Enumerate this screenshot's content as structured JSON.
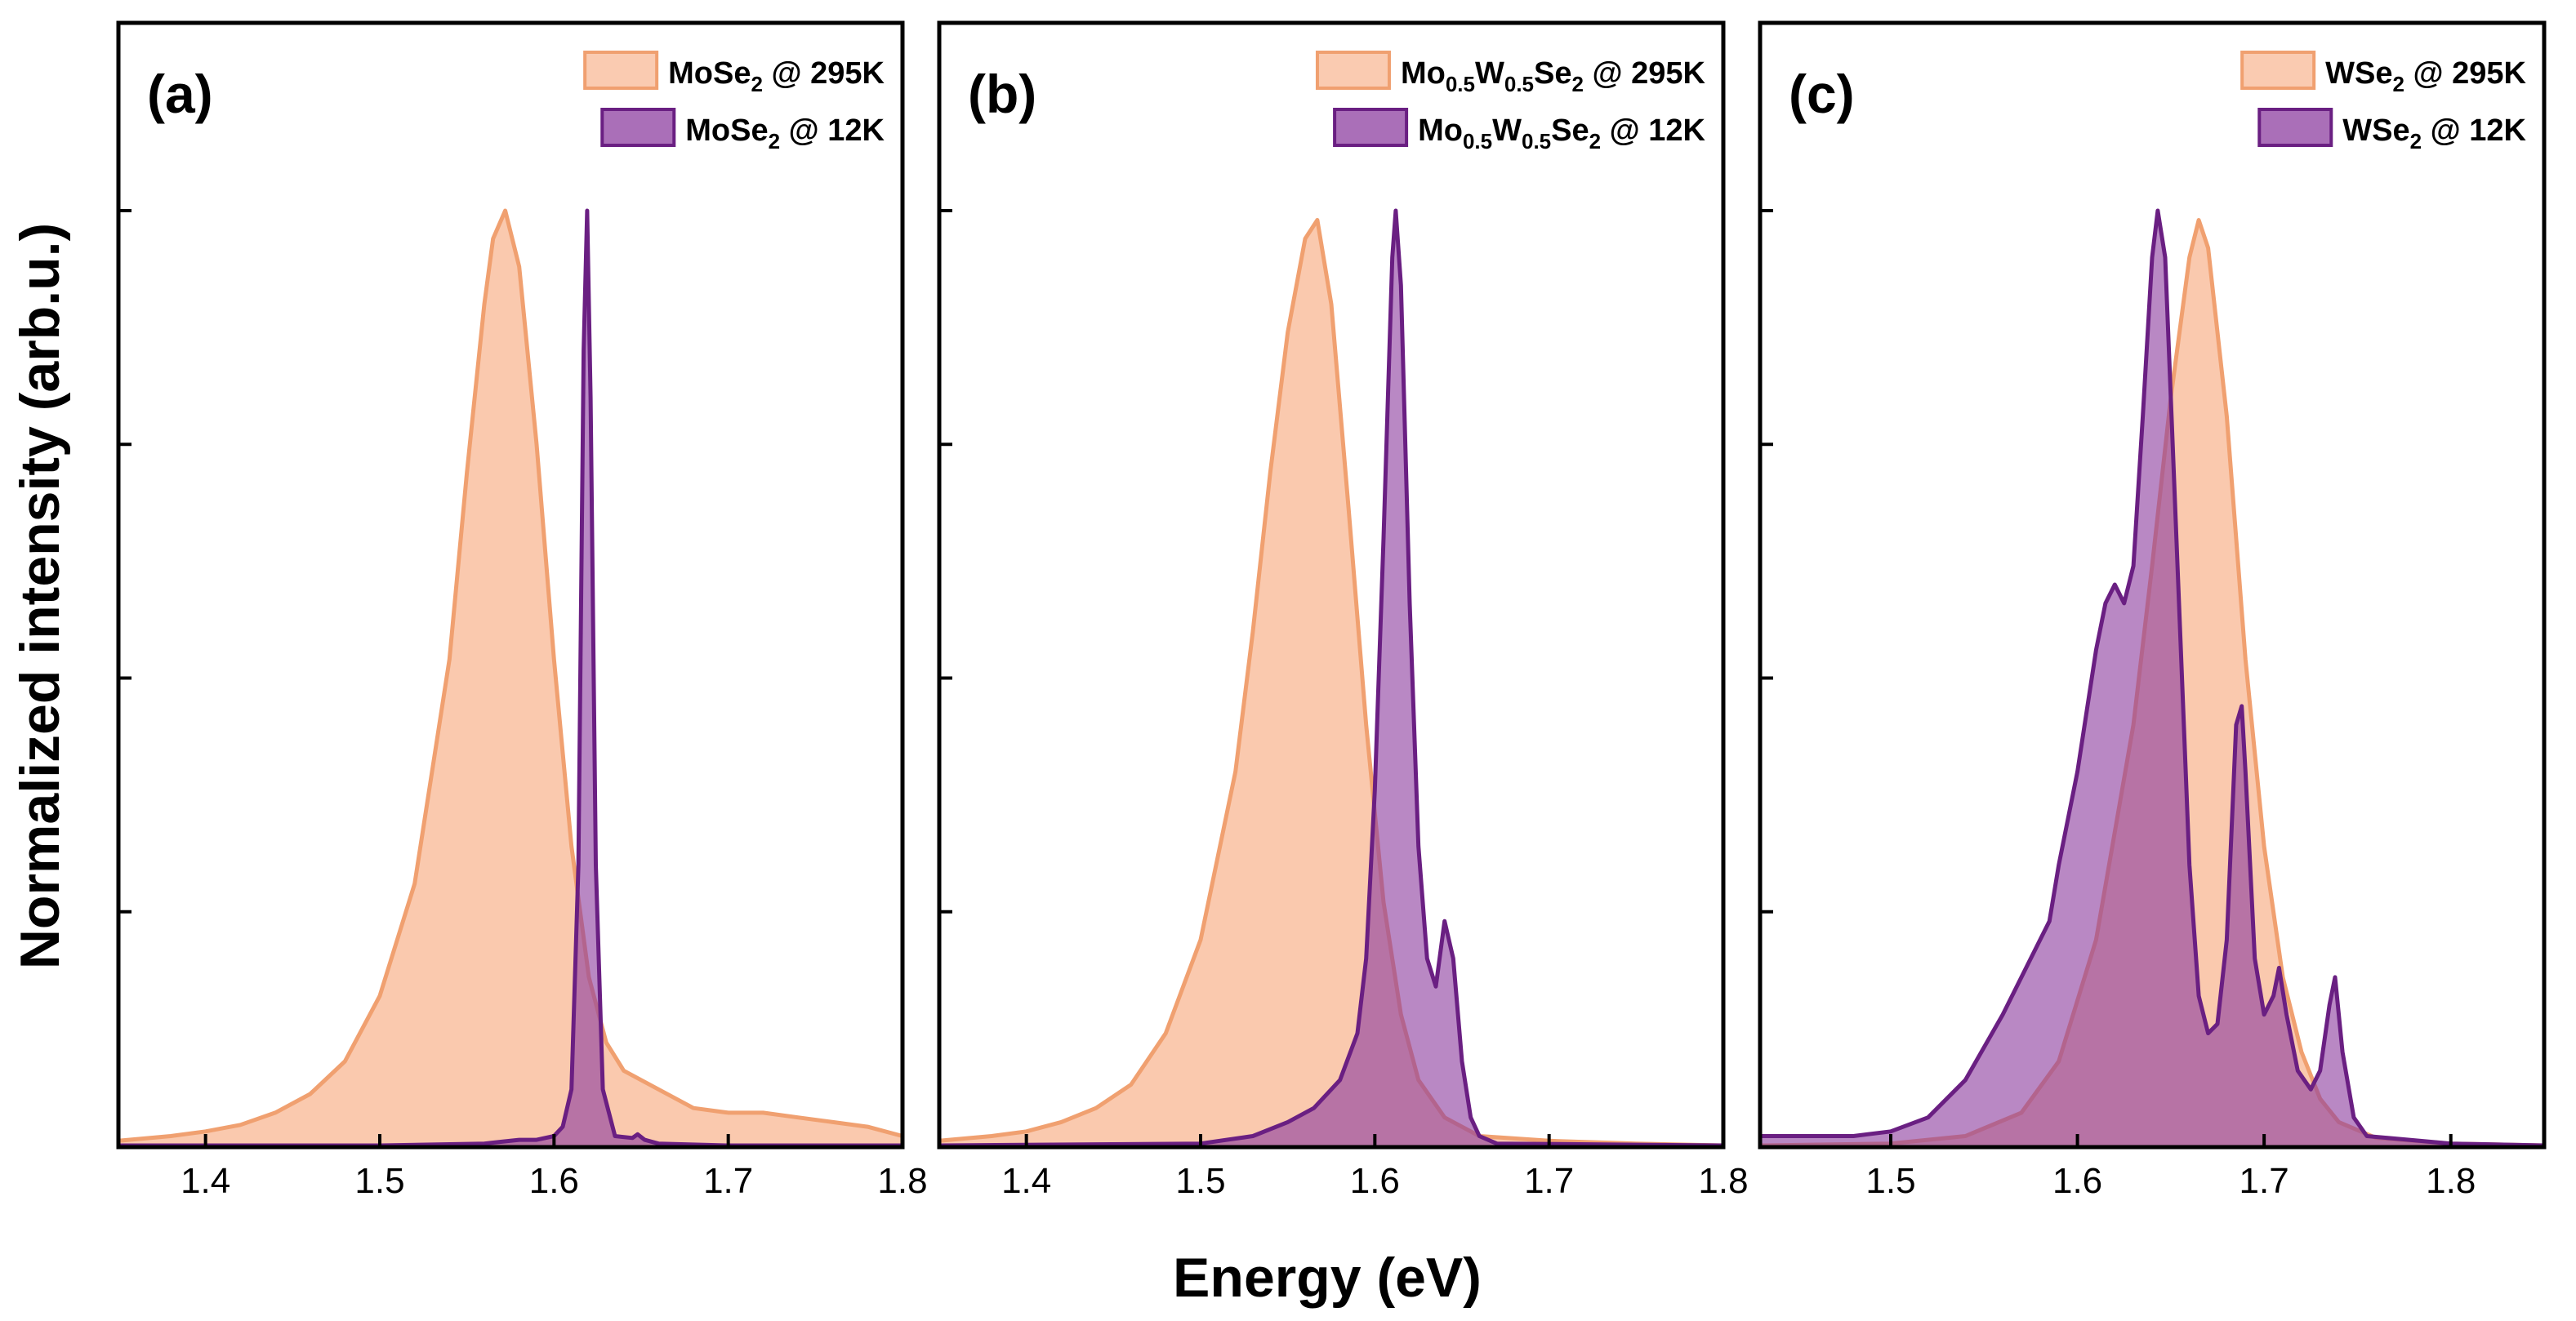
{
  "figure": {
    "xlabel": "Energy (eV)",
    "ylabel": "Normalized intensity (arb.u.)"
  },
  "colors": {
    "rt_fill": "#f9c2a3",
    "rt_line": "#f0a070",
    "lt_fill": "#8e3fa0",
    "lt_line": "#6a1f82"
  },
  "chart_data": [
    {
      "type": "area",
      "panel": "(a)",
      "xlim": [
        1.35,
        1.8
      ],
      "ylim": [
        0,
        1.0
      ],
      "xticks": [
        1.4,
        1.5,
        1.6,
        1.7,
        1.8
      ],
      "xtick_labels": [
        "1.4",
        "1.5",
        "1.6",
        "1.7",
        "1.8"
      ],
      "yticks": [
        0.25,
        0.5,
        0.75,
        1.0
      ],
      "series": [
        {
          "name": "MoSe2 @ 295K",
          "label_main": "MoSe",
          "label_sub": "2",
          "label_rest": " @ 295K",
          "x": [
            1.35,
            1.38,
            1.4,
            1.42,
            1.44,
            1.46,
            1.48,
            1.5,
            1.52,
            1.54,
            1.55,
            1.56,
            1.565,
            1.572,
            1.58,
            1.59,
            1.6,
            1.61,
            1.62,
            1.63,
            1.64,
            1.66,
            1.68,
            1.7,
            1.72,
            1.74,
            1.76,
            1.78,
            1.8
          ],
          "y": [
            0.005,
            0.01,
            0.015,
            0.022,
            0.035,
            0.055,
            0.09,
            0.16,
            0.28,
            0.52,
            0.72,
            0.9,
            0.97,
            1.0,
            0.94,
            0.75,
            0.52,
            0.32,
            0.18,
            0.11,
            0.08,
            0.06,
            0.04,
            0.035,
            0.035,
            0.03,
            0.025,
            0.02,
            0.01
          ]
        },
        {
          "name": "MoSe2 @ 12K",
          "label_main": "MoSe",
          "label_sub": "2",
          "label_rest": " @ 12K",
          "x": [
            1.35,
            1.5,
            1.56,
            1.57,
            1.58,
            1.59,
            1.6,
            1.605,
            1.61,
            1.614,
            1.617,
            1.619,
            1.621,
            1.624,
            1.628,
            1.635,
            1.645,
            1.648,
            1.652,
            1.66,
            1.7,
            1.8
          ],
          "y": [
            0,
            0,
            0.002,
            0.004,
            0.006,
            0.006,
            0.01,
            0.02,
            0.06,
            0.3,
            0.85,
            1.0,
            0.8,
            0.3,
            0.06,
            0.01,
            0.008,
            0.012,
            0.006,
            0.002,
            0,
            0
          ]
        }
      ]
    },
    {
      "type": "area",
      "panel": "(b)",
      "xlim": [
        1.35,
        1.8
      ],
      "ylim": [
        0,
        1.0
      ],
      "xticks": [
        1.4,
        1.5,
        1.6,
        1.7,
        1.8
      ],
      "xtick_labels": [
        "1.4",
        "1.5",
        "1.6",
        "1.7",
        "1.8"
      ],
      "yticks": [
        0.25,
        0.5,
        0.75,
        1.0
      ],
      "series": [
        {
          "name": "Mo0.5W0.5Se2 @ 295K",
          "label_main": "Mo",
          "label_sub": "0.5",
          "label_main2": "W",
          "label_sub2": "0.5",
          "label_main3": "Se",
          "label_sub3": "2",
          "label_rest": " @ 295K",
          "x": [
            1.35,
            1.38,
            1.4,
            1.42,
            1.44,
            1.46,
            1.48,
            1.5,
            1.52,
            1.53,
            1.54,
            1.55,
            1.56,
            1.567,
            1.575,
            1.585,
            1.595,
            1.605,
            1.615,
            1.625,
            1.64,
            1.66,
            1.7,
            1.75,
            1.8
          ],
          "y": [
            0.005,
            0.01,
            0.015,
            0.025,
            0.04,
            0.065,
            0.12,
            0.22,
            0.4,
            0.55,
            0.72,
            0.87,
            0.97,
            0.99,
            0.9,
            0.68,
            0.45,
            0.26,
            0.14,
            0.07,
            0.03,
            0.01,
            0.005,
            0.002,
            0
          ]
        },
        {
          "name": "Mo0.5W0.5Se2 @ 12K",
          "label_main": "Mo",
          "label_sub": "0.5",
          "label_main2": "W",
          "label_sub2": "0.5",
          "label_main3": "Se",
          "label_sub3": "2",
          "label_rest": " @ 12K",
          "x": [
            1.35,
            1.5,
            1.53,
            1.55,
            1.565,
            1.58,
            1.59,
            1.595,
            1.6,
            1.605,
            1.61,
            1.612,
            1.615,
            1.62,
            1.625,
            1.63,
            1.635,
            1.64,
            1.645,
            1.65,
            1.655,
            1.66,
            1.67,
            1.8
          ],
          "y": [
            0,
            0.002,
            0.01,
            0.025,
            0.04,
            0.07,
            0.12,
            0.2,
            0.38,
            0.65,
            0.95,
            1.0,
            0.92,
            0.58,
            0.32,
            0.2,
            0.17,
            0.24,
            0.2,
            0.09,
            0.03,
            0.01,
            0.002,
            0
          ]
        }
      ]
    },
    {
      "type": "area",
      "panel": "(c)",
      "xlim": [
        1.43,
        1.85
      ],
      "ylim": [
        0,
        1.0
      ],
      "xticks": [
        1.5,
        1.6,
        1.7,
        1.8
      ],
      "xtick_labels": [
        "1.5",
        "1.6",
        "1.7",
        "1.8"
      ],
      "yticks": [
        0.25,
        0.5,
        0.75,
        1.0
      ],
      "series": [
        {
          "name": "WSe2 @ 295K",
          "label_main": "WSe",
          "label_sub": "2",
          "label_rest": " @ 295K",
          "x": [
            1.43,
            1.5,
            1.54,
            1.57,
            1.59,
            1.61,
            1.63,
            1.64,
            1.65,
            1.66,
            1.665,
            1.67,
            1.68,
            1.69,
            1.7,
            1.71,
            1.72,
            1.73,
            1.74,
            1.76,
            1.8,
            1.85
          ],
          "y": [
            0,
            0.002,
            0.01,
            0.035,
            0.09,
            0.22,
            0.45,
            0.62,
            0.8,
            0.95,
            0.99,
            0.96,
            0.78,
            0.52,
            0.32,
            0.18,
            0.1,
            0.05,
            0.025,
            0.008,
            0.002,
            0
          ]
        },
        {
          "name": "WSe2 @ 12K",
          "label_main": "WSe",
          "label_sub": "2",
          "label_rest": " @ 12K",
          "x": [
            1.43,
            1.48,
            1.5,
            1.52,
            1.54,
            1.56,
            1.575,
            1.585,
            1.59,
            1.6,
            1.61,
            1.615,
            1.62,
            1.625,
            1.63,
            1.635,
            1.64,
            1.643,
            1.647,
            1.65,
            1.655,
            1.66,
            1.665,
            1.67,
            1.675,
            1.68,
            1.685,
            1.688,
            1.69,
            1.695,
            1.7,
            1.705,
            1.708,
            1.712,
            1.718,
            1.725,
            1.73,
            1.735,
            1.738,
            1.742,
            1.748,
            1.755,
            1.8,
            1.85
          ],
          "y": [
            0.01,
            0.01,
            0.015,
            0.03,
            0.07,
            0.14,
            0.2,
            0.24,
            0.3,
            0.4,
            0.53,
            0.58,
            0.6,
            0.58,
            0.62,
            0.78,
            0.95,
            1.0,
            0.95,
            0.8,
            0.55,
            0.3,
            0.16,
            0.12,
            0.13,
            0.22,
            0.45,
            0.47,
            0.4,
            0.2,
            0.14,
            0.16,
            0.19,
            0.14,
            0.08,
            0.06,
            0.08,
            0.15,
            0.18,
            0.1,
            0.03,
            0.01,
            0.002,
            0
          ]
        }
      ]
    }
  ]
}
